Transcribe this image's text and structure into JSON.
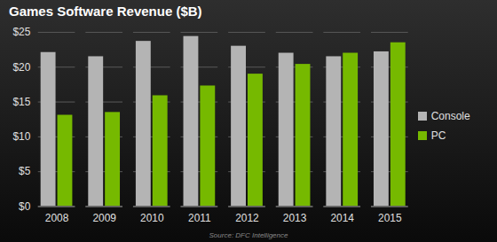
{
  "chart_data": {
    "type": "bar",
    "title": "Games Software Revenue ($B)",
    "caption": "Source: DFC Intelligence",
    "categories": [
      "2008",
      "2009",
      "2010",
      "2011",
      "2012",
      "2013",
      "2014",
      "2015"
    ],
    "series": [
      {
        "name": "Console",
        "color": "#b4b4b4",
        "values": [
          22.1,
          21.5,
          23.7,
          24.4,
          23.0,
          22.0,
          21.5,
          22.2
        ]
      },
      {
        "name": "PC",
        "color": "#76b900",
        "values": [
          13.1,
          13.5,
          15.9,
          17.3,
          19.0,
          20.4,
          22.0,
          23.5
        ]
      }
    ],
    "ylim": [
      0,
      25
    ],
    "yticks": [
      {
        "value": 0,
        "label": "$0"
      },
      {
        "value": 5,
        "label": "$5"
      },
      {
        "value": 10,
        "label": "$10"
      },
      {
        "value": 15,
        "label": "$15"
      },
      {
        "value": 20,
        "label": "$20"
      },
      {
        "value": 25,
        "label": "$25"
      }
    ],
    "grid": true,
    "legend": "right"
  }
}
